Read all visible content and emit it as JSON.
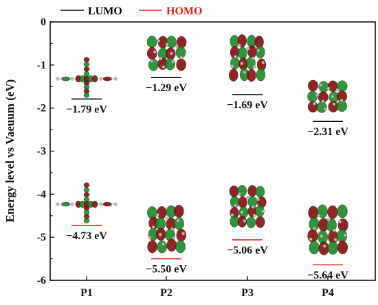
{
  "chart_data": {
    "type": "scatter",
    "ylabel": "Energy level vs Vaeuum (eV)",
    "ylim": [
      -6,
      0
    ],
    "yticks": [
      0,
      -1,
      -2,
      -3,
      -4,
      -5,
      -6
    ],
    "categories": [
      "P1",
      "P2",
      "P3",
      "P4"
    ],
    "series": [
      {
        "name": "LUMO",
        "color": "#000000",
        "values": [
          -1.79,
          -1.29,
          -1.69,
          -2.31
        ],
        "labels": [
          "−1.79 eV",
          "−1.29 eV",
          "−1.69 eV",
          "−2.31 eV"
        ]
      },
      {
        "name": "HOMO",
        "color": "#e8201e",
        "values": [
          -4.73,
          -5.5,
          -5.06,
          -5.64
        ],
        "labels": [
          "−4.73 eV",
          "−5.50 eV",
          "−5.06 eV",
          "−5.64 eV"
        ]
      }
    ],
    "legend_position": "top"
  }
}
